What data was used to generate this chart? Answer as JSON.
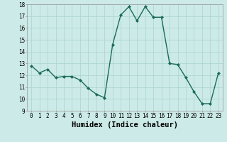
{
  "x": [
    0,
    1,
    2,
    3,
    4,
    5,
    6,
    7,
    8,
    9,
    10,
    11,
    12,
    13,
    14,
    15,
    16,
    17,
    18,
    19,
    20,
    21,
    22,
    23
  ],
  "y": [
    12.8,
    12.2,
    12.5,
    11.8,
    11.9,
    11.9,
    11.6,
    10.9,
    10.4,
    10.1,
    14.6,
    17.1,
    17.8,
    16.6,
    17.8,
    16.9,
    16.9,
    13.0,
    12.9,
    11.8,
    10.6,
    9.6,
    9.6,
    12.2
  ],
  "line_color": "#1a6b5a",
  "marker": "D",
  "marker_size": 2.0,
  "bg_color": "#cceae7",
  "grid_color": "#aad4d0",
  "xlabel": "Humidex (Indice chaleur)",
  "ylim": [
    9,
    18
  ],
  "xlim": [
    -0.5,
    23.5
  ],
  "yticks": [
    9,
    10,
    11,
    12,
    13,
    14,
    15,
    16,
    17,
    18
  ],
  "xticks": [
    0,
    1,
    2,
    3,
    4,
    5,
    6,
    7,
    8,
    9,
    10,
    11,
    12,
    13,
    14,
    15,
    16,
    17,
    18,
    19,
    20,
    21,
    22,
    23
  ],
  "tick_fontsize": 5.5,
  "xlabel_fontsize": 7.5,
  "linewidth": 1.0
}
